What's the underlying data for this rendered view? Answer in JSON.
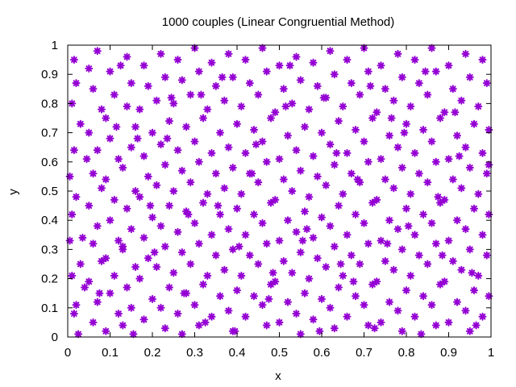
{
  "chart_data": {
    "type": "scatter",
    "title": "1000 couples (Linear Congruential Method)",
    "xlabel": "x",
    "ylabel": "y",
    "xlim": [
      0,
      1
    ],
    "ylim": [
      0,
      1
    ],
    "xticks": [
      "0",
      "0.1",
      "0.2",
      "0.3",
      "0.4",
      "0.5",
      "0.6",
      "0.7",
      "0.8",
      "0.9",
      "1"
    ],
    "yticks": [
      "0",
      "0.1",
      "0.2",
      "0.3",
      "0.4",
      "0.5",
      "0.6",
      "0.7",
      "0.8",
      "0.9",
      "1"
    ],
    "grid": false,
    "legend": "none",
    "marker": "asterisk",
    "color": "#9400d3",
    "points": [
      [
        0.015,
        0.95
      ],
      [
        0.02,
        0.87
      ],
      [
        0.01,
        0.8
      ],
      [
        0.03,
        0.73
      ],
      [
        0.015,
        0.64
      ],
      [
        0.005,
        0.55
      ],
      [
        0.02,
        0.48
      ],
      [
        0.01,
        0.42
      ],
      [
        0.005,
        0.33
      ],
      [
        0.03,
        0.25
      ],
      [
        0.01,
        0.21
      ],
      [
        0.04,
        0.17
      ],
      [
        0.02,
        0.11
      ],
      [
        0.015,
        0.08
      ],
      [
        0.025,
        0.01
      ],
      [
        0.05,
        0.92
      ],
      [
        0.07,
        0.98
      ],
      [
        0.06,
        0.85
      ],
      [
        0.08,
        0.78
      ],
      [
        0.05,
        0.7
      ],
      [
        0.07,
        0.64
      ],
      [
        0.06,
        0.56
      ],
      [
        0.08,
        0.51
      ],
      [
        0.05,
        0.45
      ],
      [
        0.07,
        0.38
      ],
      [
        0.06,
        0.32
      ],
      [
        0.08,
        0.26
      ],
      [
        0.05,
        0.19
      ],
      [
        0.07,
        0.12
      ],
      [
        0.06,
        0.05
      ],
      [
        0.1,
        0.91
      ],
      [
        0.11,
        0.83
      ],
      [
        0.09,
        0.75
      ],
      [
        0.1,
        0.68
      ],
      [
        0.12,
        0.61
      ],
      [
        0.09,
        0.54
      ],
      [
        0.11,
        0.47
      ],
      [
        0.1,
        0.4
      ],
      [
        0.12,
        0.33
      ],
      [
        0.09,
        0.27
      ],
      [
        0.11,
        0.21
      ],
      [
        0.1,
        0.15
      ],
      [
        0.12,
        0.08
      ],
      [
        0.09,
        0.02
      ],
      [
        0.13,
        0.3
      ],
      [
        0.14,
        0.96
      ],
      [
        0.15,
        0.87
      ],
      [
        0.14,
        0.79
      ],
      [
        0.16,
        0.72
      ],
      [
        0.15,
        0.65
      ],
      [
        0.13,
        0.58
      ],
      [
        0.16,
        0.5
      ],
      [
        0.14,
        0.44
      ],
      [
        0.15,
        0.37
      ],
      [
        0.13,
        0.31
      ],
      [
        0.16,
        0.24
      ],
      [
        0.14,
        0.17
      ],
      [
        0.15,
        0.1
      ],
      [
        0.13,
        0.04
      ],
      [
        0.18,
        0.93
      ],
      [
        0.19,
        0.86
      ],
      [
        0.17,
        0.78
      ],
      [
        0.2,
        0.7
      ],
      [
        0.18,
        0.62
      ],
      [
        0.19,
        0.55
      ],
      [
        0.17,
        0.48
      ],
      [
        0.2,
        0.41
      ],
      [
        0.18,
        0.34
      ],
      [
        0.19,
        0.27
      ],
      [
        0.17,
        0.2
      ],
      [
        0.2,
        0.13
      ],
      [
        0.18,
        0.06
      ],
      [
        0.22,
        0.97
      ],
      [
        0.23,
        0.89
      ],
      [
        0.21,
        0.81
      ],
      [
        0.24,
        0.74
      ],
      [
        0.22,
        0.66
      ],
      [
        0.23,
        0.59
      ],
      [
        0.21,
        0.52
      ],
      [
        0.24,
        0.45
      ],
      [
        0.22,
        0.38
      ],
      [
        0.23,
        0.31
      ],
      [
        0.21,
        0.24
      ],
      [
        0.24,
        0.17
      ],
      [
        0.22,
        0.1
      ],
      [
        0.23,
        0.03
      ],
      [
        0.26,
        0.95
      ],
      [
        0.27,
        0.88
      ],
      [
        0.25,
        0.8
      ],
      [
        0.28,
        0.72
      ],
      [
        0.26,
        0.64
      ],
      [
        0.27,
        0.57
      ],
      [
        0.25,
        0.5
      ],
      [
        0.28,
        0.43
      ],
      [
        0.26,
        0.36
      ],
      [
        0.27,
        0.29
      ],
      [
        0.25,
        0.22
      ],
      [
        0.28,
        0.15
      ],
      [
        0.26,
        0.08
      ],
      [
        0.27,
        0.01
      ],
      [
        0.3,
        0.99
      ],
      [
        0.31,
        0.91
      ],
      [
        0.29,
        0.83
      ],
      [
        0.32,
        0.75
      ],
      [
        0.3,
        0.67
      ],
      [
        0.31,
        0.6
      ],
      [
        0.29,
        0.53
      ],
      [
        0.32,
        0.46
      ],
      [
        0.3,
        0.39
      ],
      [
        0.31,
        0.32
      ],
      [
        0.29,
        0.25
      ],
      [
        0.32,
        0.18
      ],
      [
        0.3,
        0.11
      ],
      [
        0.31,
        0.04
      ],
      [
        0.34,
        0.94
      ],
      [
        0.35,
        0.86
      ],
      [
        0.33,
        0.78
      ],
      [
        0.36,
        0.7
      ],
      [
        0.34,
        0.63
      ],
      [
        0.35,
        0.56
      ],
      [
        0.33,
        0.49
      ],
      [
        0.36,
        0.42
      ],
      [
        0.34,
        0.35
      ],
      [
        0.35,
        0.28
      ],
      [
        0.33,
        0.21
      ],
      [
        0.36,
        0.14
      ],
      [
        0.34,
        0.07
      ],
      [
        0.38,
        0.97
      ],
      [
        0.39,
        0.89
      ],
      [
        0.37,
        0.81
      ],
      [
        0.4,
        0.73
      ],
      [
        0.38,
        0.65
      ],
      [
        0.39,
        0.58
      ],
      [
        0.37,
        0.51
      ],
      [
        0.4,
        0.44
      ],
      [
        0.38,
        0.37
      ],
      [
        0.39,
        0.3
      ],
      [
        0.37,
        0.23
      ],
      [
        0.4,
        0.16
      ],
      [
        0.38,
        0.09
      ],
      [
        0.39,
        0.02
      ],
      [
        0.42,
        0.95
      ],
      [
        0.43,
        0.87
      ],
      [
        0.41,
        0.79
      ],
      [
        0.44,
        0.71
      ],
      [
        0.42,
        0.63
      ],
      [
        0.43,
        0.56
      ],
      [
        0.41,
        0.49
      ],
      [
        0.44,
        0.42
      ],
      [
        0.42,
        0.35
      ],
      [
        0.43,
        0.28
      ],
      [
        0.41,
        0.21
      ],
      [
        0.44,
        0.14
      ],
      [
        0.42,
        0.07
      ],
      [
        0.46,
        0.99
      ],
      [
        0.47,
        0.91
      ],
      [
        0.45,
        0.83
      ],
      [
        0.48,
        0.75
      ],
      [
        0.46,
        0.67
      ],
      [
        0.47,
        0.6
      ],
      [
        0.45,
        0.53
      ],
      [
        0.48,
        0.46
      ],
      [
        0.46,
        0.39
      ],
      [
        0.47,
        0.32
      ],
      [
        0.45,
        0.25
      ],
      [
        0.48,
        0.18
      ],
      [
        0.46,
        0.11
      ],
      [
        0.47,
        0.04
      ],
      [
        0.5,
        0.93
      ],
      [
        0.51,
        0.85
      ],
      [
        0.49,
        0.77
      ],
      [
        0.52,
        0.69
      ],
      [
        0.5,
        0.61
      ],
      [
        0.51,
        0.54
      ],
      [
        0.49,
        0.47
      ],
      [
        0.52,
        0.4
      ],
      [
        0.5,
        0.33
      ],
      [
        0.51,
        0.26
      ],
      [
        0.49,
        0.19
      ],
      [
        0.52,
        0.12
      ],
      [
        0.5,
        0.05
      ],
      [
        0.54,
        0.96
      ],
      [
        0.55,
        0.88
      ],
      [
        0.53,
        0.8
      ],
      [
        0.56,
        0.72
      ],
      [
        0.54,
        0.64
      ],
      [
        0.55,
        0.57
      ],
      [
        0.53,
        0.5
      ],
      [
        0.56,
        0.43
      ],
      [
        0.54,
        0.36
      ],
      [
        0.55,
        0.29
      ],
      [
        0.53,
        0.22
      ],
      [
        0.56,
        0.15
      ],
      [
        0.54,
        0.08
      ],
      [
        0.55,
        0.01
      ],
      [
        0.58,
        0.94
      ],
      [
        0.59,
        0.86
      ],
      [
        0.57,
        0.78
      ],
      [
        0.6,
        0.7
      ],
      [
        0.58,
        0.62
      ],
      [
        0.59,
        0.55
      ],
      [
        0.57,
        0.48
      ],
      [
        0.6,
        0.41
      ],
      [
        0.58,
        0.34
      ],
      [
        0.59,
        0.27
      ],
      [
        0.57,
        0.2
      ],
      [
        0.6,
        0.13
      ],
      [
        0.58,
        0.06
      ],
      [
        0.62,
        0.98
      ],
      [
        0.63,
        0.9
      ],
      [
        0.61,
        0.82
      ],
      [
        0.64,
        0.74
      ],
      [
        0.62,
        0.66
      ],
      [
        0.63,
        0.59
      ],
      [
        0.61,
        0.52
      ],
      [
        0.64,
        0.45
      ],
      [
        0.62,
        0.38
      ],
      [
        0.63,
        0.31
      ],
      [
        0.61,
        0.24
      ],
      [
        0.64,
        0.17
      ],
      [
        0.62,
        0.1
      ],
      [
        0.63,
        0.03
      ],
      [
        0.66,
        0.95
      ],
      [
        0.67,
        0.87
      ],
      [
        0.65,
        0.79
      ],
      [
        0.68,
        0.71
      ],
      [
        0.66,
        0.63
      ],
      [
        0.67,
        0.56
      ],
      [
        0.65,
        0.49
      ],
      [
        0.68,
        0.42
      ],
      [
        0.66,
        0.35
      ],
      [
        0.67,
        0.28
      ],
      [
        0.65,
        0.21
      ],
      [
        0.68,
        0.14
      ],
      [
        0.66,
        0.07
      ],
      [
        0.7,
        0.99
      ],
      [
        0.71,
        0.91
      ],
      [
        0.69,
        0.83
      ],
      [
        0.72,
        0.75
      ],
      [
        0.7,
        0.67
      ],
      [
        0.71,
        0.6
      ],
      [
        0.69,
        0.53
      ],
      [
        0.72,
        0.46
      ],
      [
        0.7,
        0.39
      ],
      [
        0.71,
        0.32
      ],
      [
        0.69,
        0.25
      ],
      [
        0.72,
        0.18
      ],
      [
        0.7,
        0.11
      ],
      [
        0.71,
        0.04
      ],
      [
        0.74,
        0.93
      ],
      [
        0.75,
        0.85
      ],
      [
        0.73,
        0.77
      ],
      [
        0.76,
        0.69
      ],
      [
        0.74,
        0.61
      ],
      [
        0.75,
        0.54
      ],
      [
        0.73,
        0.47
      ],
      [
        0.76,
        0.4
      ],
      [
        0.74,
        0.33
      ],
      [
        0.75,
        0.26
      ],
      [
        0.73,
        0.19
      ],
      [
        0.76,
        0.12
      ],
      [
        0.74,
        0.05
      ],
      [
        0.78,
        0.97
      ],
      [
        0.79,
        0.89
      ],
      [
        0.77,
        0.81
      ],
      [
        0.8,
        0.73
      ],
      [
        0.78,
        0.65
      ],
      [
        0.79,
        0.58
      ],
      [
        0.77,
        0.51
      ],
      [
        0.8,
        0.44
      ],
      [
        0.78,
        0.37
      ],
      [
        0.79,
        0.3
      ],
      [
        0.77,
        0.23
      ],
      [
        0.8,
        0.16
      ],
      [
        0.78,
        0.09
      ],
      [
        0.79,
        0.02
      ],
      [
        0.82,
        0.95
      ],
      [
        0.83,
        0.87
      ],
      [
        0.81,
        0.79
      ],
      [
        0.84,
        0.71
      ],
      [
        0.82,
        0.63
      ],
      [
        0.83,
        0.56
      ],
      [
        0.81,
        0.49
      ],
      [
        0.84,
        0.42
      ],
      [
        0.82,
        0.35
      ],
      [
        0.83,
        0.28
      ],
      [
        0.81,
        0.21
      ],
      [
        0.84,
        0.14
      ],
      [
        0.82,
        0.07
      ],
      [
        0.86,
        0.99
      ],
      [
        0.87,
        0.91
      ],
      [
        0.85,
        0.83
      ],
      [
        0.88,
        0.75
      ],
      [
        0.86,
        0.67
      ],
      [
        0.87,
        0.6
      ],
      [
        0.85,
        0.53
      ],
      [
        0.88,
        0.46
      ],
      [
        0.86,
        0.39
      ],
      [
        0.87,
        0.32
      ],
      [
        0.85,
        0.25
      ],
      [
        0.88,
        0.18
      ],
      [
        0.86,
        0.11
      ],
      [
        0.87,
        0.04
      ],
      [
        0.9,
        0.93
      ],
      [
        0.91,
        0.85
      ],
      [
        0.89,
        0.77
      ],
      [
        0.92,
        0.69
      ],
      [
        0.9,
        0.61
      ],
      [
        0.91,
        0.54
      ],
      [
        0.89,
        0.47
      ],
      [
        0.92,
        0.4
      ],
      [
        0.9,
        0.33
      ],
      [
        0.91,
        0.26
      ],
      [
        0.89,
        0.19
      ],
      [
        0.92,
        0.12
      ],
      [
        0.9,
        0.05
      ],
      [
        0.94,
        0.97
      ],
      [
        0.95,
        0.89
      ],
      [
        0.93,
        0.81
      ],
      [
        0.96,
        0.73
      ],
      [
        0.94,
        0.65
      ],
      [
        0.95,
        0.58
      ],
      [
        0.93,
        0.51
      ],
      [
        0.96,
        0.44
      ],
      [
        0.94,
        0.37
      ],
      [
        0.95,
        0.3
      ],
      [
        0.93,
        0.23
      ],
      [
        0.96,
        0.16
      ],
      [
        0.94,
        0.09
      ],
      [
        0.95,
        0.02
      ],
      [
        0.98,
        0.95
      ],
      [
        0.99,
        0.87
      ],
      [
        0.97,
        0.79
      ],
      [
        0.995,
        0.71
      ],
      [
        0.98,
        0.63
      ],
      [
        0.99,
        0.56
      ],
      [
        0.97,
        0.49
      ],
      [
        0.995,
        0.42
      ],
      [
        0.98,
        0.35
      ],
      [
        0.99,
        0.28
      ],
      [
        0.97,
        0.21
      ],
      [
        0.995,
        0.14
      ],
      [
        0.98,
        0.07
      ],
      [
        0.045,
        0.61
      ],
      [
        0.125,
        0.93
      ],
      [
        0.165,
        0.68
      ],
      [
        0.205,
        0.29
      ],
      [
        0.245,
        0.82
      ],
      [
        0.285,
        0.42
      ],
      [
        0.325,
        0.05
      ],
      [
        0.365,
        0.89
      ],
      [
        0.405,
        0.31
      ],
      [
        0.445,
        0.66
      ],
      [
        0.485,
        0.22
      ],
      [
        0.525,
        0.93
      ],
      [
        0.565,
        0.37
      ],
      [
        0.605,
        0.82
      ],
      [
        0.645,
        0.25
      ],
      [
        0.685,
        0.54
      ],
      [
        0.725,
        0.03
      ],
      [
        0.765,
        0.75
      ],
      [
        0.805,
        0.38
      ],
      [
        0.845,
        0.91
      ],
      [
        0.885,
        0.28
      ],
      [
        0.925,
        0.62
      ],
      [
        0.965,
        0.04
      ],
      [
        0.035,
        0.34
      ],
      [
        0.075,
        0.15
      ],
      [
        0.115,
        0.72
      ],
      [
        0.155,
        0.01
      ],
      [
        0.195,
        0.45
      ],
      [
        0.235,
        0.68
      ],
      [
        0.275,
        0.15
      ],
      [
        0.315,
        0.83
      ],
      [
        0.355,
        0.45
      ],
      [
        0.395,
        0.02
      ],
      [
        0.435,
        0.56
      ],
      [
        0.475,
        0.13
      ],
      [
        0.515,
        0.79
      ],
      [
        0.555,
        0.33
      ],
      [
        0.595,
        0.02
      ],
      [
        0.635,
        0.63
      ],
      [
        0.675,
        0.19
      ],
      [
        0.715,
        0.86
      ],
      [
        0.755,
        0.32
      ],
      [
        0.795,
        0.7
      ],
      [
        0.835,
        0.01
      ],
      [
        0.875,
        0.48
      ],
      [
        0.915,
        0.77
      ],
      [
        0.955,
        0.22
      ],
      [
        0.995,
        0.59
      ]
    ]
  }
}
